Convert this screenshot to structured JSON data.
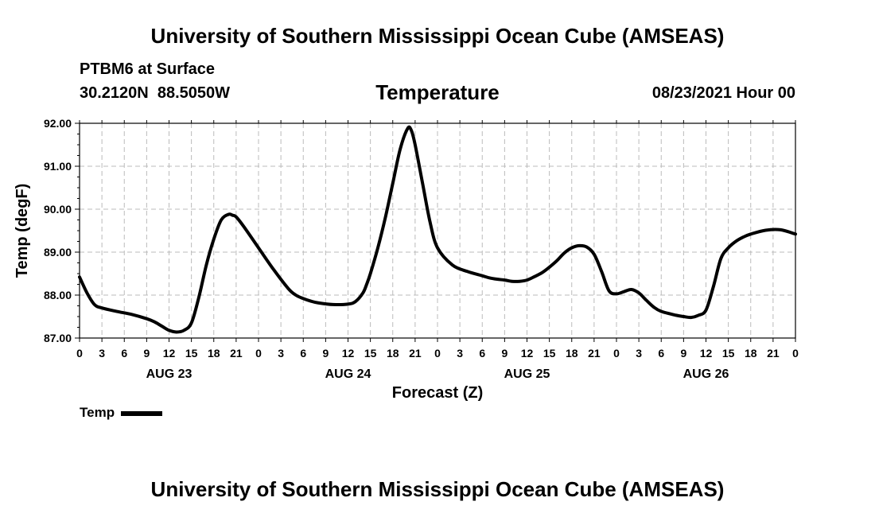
{
  "header": {
    "title": "University of Southern Mississippi Ocean Cube (AMSEAS)",
    "station": "PTBM6 at Surface",
    "lat": "30.2120N",
    "lon": "88.5050W",
    "datetime": "08/23/2021 Hour 00"
  },
  "footer": {
    "title": "University of Southern Mississippi Ocean Cube (AMSEAS)"
  },
  "legend": {
    "label": "Temp"
  },
  "chart_data": {
    "type": "line",
    "title": "Temperature",
    "xlabel": "Forecast (Z)",
    "ylabel": "Temp (degF)",
    "ylim": [
      87.0,
      92.0
    ],
    "xlim": [
      0,
      96
    ],
    "grid": true,
    "yticks": [
      "87.00",
      "88.00",
      "89.00",
      "90.00",
      "91.00",
      "92.00"
    ],
    "xtick_labels": [
      "0",
      "3",
      "6",
      "9",
      "12",
      "15",
      "18",
      "21",
      "0",
      "3",
      "6",
      "9",
      "12",
      "15",
      "18",
      "21",
      "0",
      "3",
      "6",
      "9",
      "12",
      "15",
      "18",
      "21",
      "0",
      "3",
      "6",
      "9",
      "12",
      "15",
      "18",
      "21",
      "0"
    ],
    "day_labels": [
      {
        "hour": 12,
        "label": "AUG 23"
      },
      {
        "hour": 36,
        "label": "AUG 24"
      },
      {
        "hour": 60,
        "label": "AUG 25"
      },
      {
        "hour": 84,
        "label": "AUG 26"
      }
    ],
    "series": [
      {
        "name": "Temp",
        "x": [
          0,
          1,
          2,
          3,
          5,
          7,
          9,
          10,
          11,
          12,
          13,
          14,
          15,
          16,
          17,
          18,
          19,
          20,
          20.5,
          21,
          22,
          24,
          26,
          28,
          29,
          30,
          31,
          32,
          34,
          36,
          37,
          38,
          38.5,
          39,
          40,
          41,
          42,
          43,
          44,
          44.5,
          45,
          46,
          47,
          48,
          50,
          52,
          54,
          55,
          56,
          57,
          58,
          59,
          60,
          61,
          62,
          63,
          64,
          65,
          66,
          67,
          68,
          69,
          70,
          71,
          72,
          73,
          74,
          75,
          76,
          77,
          78,
          80,
          81,
          82,
          83,
          84,
          85,
          86,
          87,
          88,
          89,
          90,
          92,
          94,
          96
        ],
        "values": [
          88.42,
          88.05,
          87.78,
          87.7,
          87.62,
          87.55,
          87.45,
          87.38,
          87.28,
          87.18,
          87.14,
          87.18,
          87.35,
          87.95,
          88.7,
          89.3,
          89.75,
          89.88,
          89.86,
          89.82,
          89.6,
          89.1,
          88.6,
          88.15,
          88.0,
          87.92,
          87.86,
          87.82,
          87.78,
          87.79,
          87.85,
          88.05,
          88.25,
          88.5,
          89.1,
          89.8,
          90.6,
          91.4,
          91.88,
          91.83,
          91.5,
          90.6,
          89.7,
          89.1,
          88.7,
          88.55,
          88.45,
          88.4,
          88.37,
          88.35,
          88.32,
          88.32,
          88.35,
          88.43,
          88.52,
          88.65,
          88.8,
          88.98,
          89.1,
          89.15,
          89.12,
          88.95,
          88.55,
          88.1,
          88.03,
          88.08,
          88.13,
          88.05,
          87.88,
          87.72,
          87.62,
          87.53,
          87.5,
          87.48,
          87.53,
          87.65,
          88.2,
          88.85,
          89.1,
          89.25,
          89.35,
          89.42,
          89.51,
          89.52,
          89.42
        ]
      }
    ]
  }
}
